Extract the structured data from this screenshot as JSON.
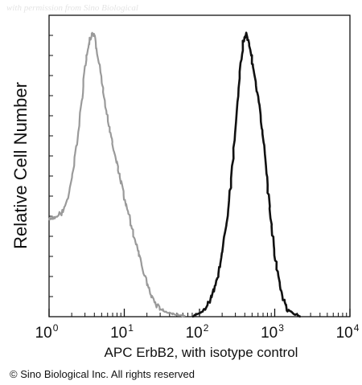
{
  "watermark": "with permission from Sino Biological",
  "copyright": "© Sino Biological Inc. All rights reserved",
  "chart_data": {
    "type": "line",
    "xlabel": "APC  ErbB2,  with isotype control",
    "ylabel": "Relative Cell Number",
    "x_scale": "log",
    "xlim": [
      1,
      10000
    ],
    "ylim": [
      0,
      1
    ],
    "x_ticks": [
      {
        "base": "10",
        "exp": "0"
      },
      {
        "base": "10",
        "exp": "1"
      },
      {
        "base": "10",
        "exp": "2"
      },
      {
        "base": "10",
        "exp": "3"
      },
      {
        "base": "10",
        "exp": "4"
      }
    ],
    "grid": false,
    "legend": "none",
    "series": [
      {
        "color": "#9a9a9a",
        "points": [
          [
            1.0,
            0.34
          ],
          [
            1.2,
            0.35
          ],
          [
            1.5,
            0.37
          ],
          [
            1.8,
            0.42
          ],
          [
            2.1,
            0.52
          ],
          [
            2.4,
            0.63
          ],
          [
            2.7,
            0.76
          ],
          [
            3.0,
            0.88
          ],
          [
            3.3,
            0.95
          ],
          [
            3.6,
            0.99
          ],
          [
            4.0,
            1.0
          ],
          [
            4.4,
            0.93
          ],
          [
            5.0,
            0.83
          ],
          [
            5.6,
            0.74
          ],
          [
            6.3,
            0.67
          ],
          [
            7.0,
            0.61
          ],
          [
            8.0,
            0.54
          ],
          [
            9.0,
            0.48
          ],
          [
            10,
            0.42
          ],
          [
            11.5,
            0.36
          ],
          [
            13,
            0.3
          ],
          [
            15,
            0.24
          ],
          [
            17,
            0.18
          ],
          [
            20,
            0.12
          ],
          [
            23,
            0.07
          ],
          [
            27,
            0.04
          ],
          [
            31,
            0.025
          ],
          [
            36,
            0.015
          ],
          [
            45,
            0.01
          ],
          [
            55,
            0.005
          ],
          [
            65,
            0.0
          ]
        ]
      },
      {
        "color": "#111111",
        "points": [
          [
            80,
            0.0
          ],
          [
            100,
            0.01
          ],
          [
            120,
            0.03
          ],
          [
            140,
            0.06
          ],
          [
            160,
            0.1
          ],
          [
            180,
            0.16
          ],
          [
            200,
            0.23
          ],
          [
            230,
            0.33
          ],
          [
            260,
            0.46
          ],
          [
            300,
            0.65
          ],
          [
            340,
            0.85
          ],
          [
            380,
            0.97
          ],
          [
            420,
            1.0
          ],
          [
            470,
            0.95
          ],
          [
            520,
            0.88
          ],
          [
            580,
            0.8
          ],
          [
            650,
            0.71
          ],
          [
            720,
            0.6
          ],
          [
            800,
            0.47
          ],
          [
            900,
            0.33
          ],
          [
            1000,
            0.22
          ],
          [
            1150,
            0.12
          ],
          [
            1300,
            0.06
          ],
          [
            1500,
            0.025
          ],
          [
            1800,
            0.01
          ],
          [
            2200,
            0.0
          ]
        ]
      }
    ]
  }
}
